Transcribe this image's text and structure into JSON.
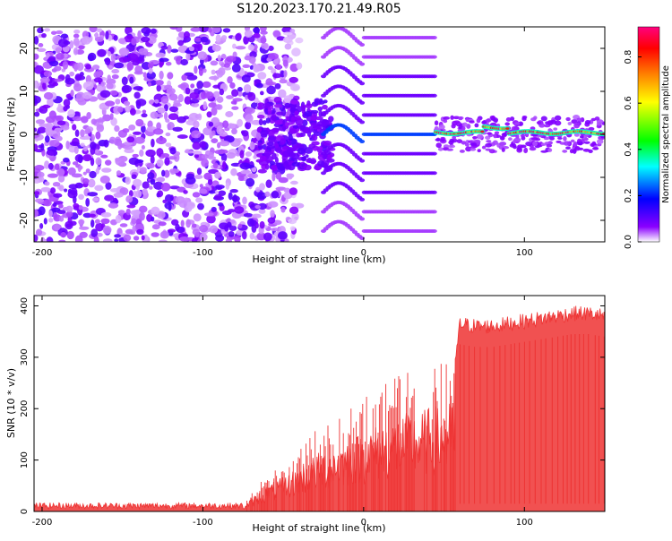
{
  "title": "S120.2023.170.21.49.R05",
  "chart_data": [
    {
      "type": "heatmap",
      "xlabel": "Height of straight line (km)",
      "ylabel": "Frequency (Hz)",
      "xlim": [
        -205,
        150
      ],
      "ylim": [
        -25,
        25
      ],
      "xticks": [
        -200,
        -100,
        0,
        100
      ],
      "yticks": [
        -20,
        -10,
        0,
        10,
        20
      ],
      "colorbar": {
        "label": "Normalized spectral amplitude",
        "ticks": [
          "0.0",
          "0.2",
          "0.4",
          "0.6",
          "0.8"
        ],
        "tick_values": [
          0.0,
          0.2,
          0.4,
          0.6,
          0.8
        ],
        "range": [
          0,
          0.93
        ],
        "colormap": [
          "#ffffff",
          "#8a00ff",
          "#0000ff",
          "#00ffff",
          "#00ff00",
          "#ffff00",
          "#ff8000",
          "#ff0000",
          "#ff0080"
        ]
      },
      "regions": [
        {
          "x_range": [
            -205,
            -60
          ],
          "pattern": "random noise",
          "max_amplitude": 0.12
        },
        {
          "x_range": [
            -60,
            -20
          ],
          "pattern": "noise cluster near 0 Hz",
          "max_amplitude": 0.15
        },
        {
          "x_range": [
            -20,
            45
          ],
          "pattern": "harmonic bands spaced ~4.5 Hz",
          "max_amplitude": 0.2
        },
        {
          "x_range": [
            45,
            150
          ],
          "pattern": "strong line at ~0 Hz",
          "max_amplitude": 0.93
        }
      ]
    },
    {
      "type": "line",
      "xlabel": "Height of straight line (km)",
      "ylabel": "SNR (10 * v/v)",
      "xlim": [
        -205,
        150
      ],
      "ylim": [
        0,
        420
      ],
      "xticks": [
        -200,
        -100,
        0,
        100
      ],
      "yticks": [
        0,
        100,
        200,
        300,
        400
      ],
      "color": "#ee3333",
      "series": [
        {
          "x": [
            -205,
            -150,
            -100,
            -75,
            -60,
            -50,
            -40,
            -30,
            -20,
            -10,
            0,
            10,
            20,
            30,
            40,
            50,
            57,
            60,
            70,
            80,
            90,
            100,
            110,
            120,
            130,
            140,
            150
          ],
          "y": [
            10,
            10,
            10,
            15,
            70,
            90,
            120,
            150,
            170,
            190,
            210,
            230,
            250,
            260,
            270,
            280,
            290,
            365,
            360,
            360,
            365,
            370,
            375,
            380,
            385,
            385,
            380
          ]
        }
      ]
    }
  ]
}
